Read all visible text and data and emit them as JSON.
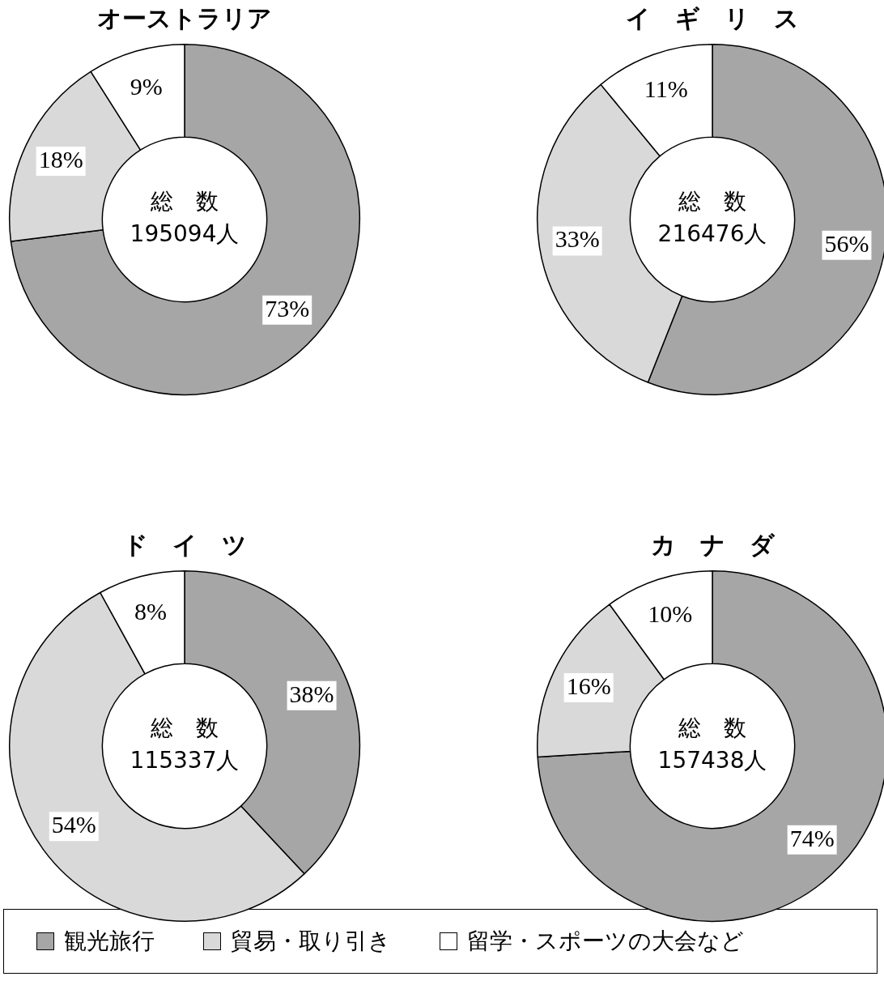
{
  "chart_data": [
    {
      "type": "donut",
      "title": "オーストラリア",
      "categories": [
        "観光旅行",
        "貿易・取り引き",
        "留学・スポーツの大会など"
      ],
      "values": [
        73,
        18,
        9
      ],
      "colors": [
        "#a6a6a6",
        "#d9d9d9",
        "#ffffff"
      ],
      "value_labels": [
        "73%",
        "18%",
        "9%"
      ],
      "legend": "bottom",
      "annotations": [
        "総　数",
        "195094人"
      ]
    },
    {
      "type": "donut",
      "title": "イ　ギ　リ　ス",
      "categories": [
        null,
        null,
        null
      ],
      "values": [
        56,
        33,
        11
      ],
      "colors": [
        "#a6a6a6",
        "#d9d9d9",
        "#ffffff"
      ],
      "value_labels": [
        "56%",
        "33%",
        "11%"
      ],
      "annotations": [
        "総　数",
        "216476人"
      ]
    },
    {
      "type": "donut",
      "title": "ド　イ　ツ",
      "categories": [
        null,
        null,
        null
      ],
      "values": [
        38,
        54,
        8
      ],
      "colors": [
        "#a6a6a6",
        "#d9d9d9",
        "#ffffff"
      ],
      "value_labels": [
        "38%",
        "54%",
        "8%"
      ],
      "annotations": [
        "総　数",
        "115337人"
      ]
    },
    {
      "type": "donut",
      "title": "カ　ナ　ダ",
      "categories": [
        null,
        null,
        null
      ],
      "values": [
        74,
        16,
        10
      ],
      "colors": [
        "#a6a6a6",
        "#d9d9d9",
        "#ffffff"
      ],
      "value_labels": [
        "74%",
        "16%",
        "10%"
      ],
      "annotations": [
        "総　数",
        "157438人"
      ]
    }
  ]
}
